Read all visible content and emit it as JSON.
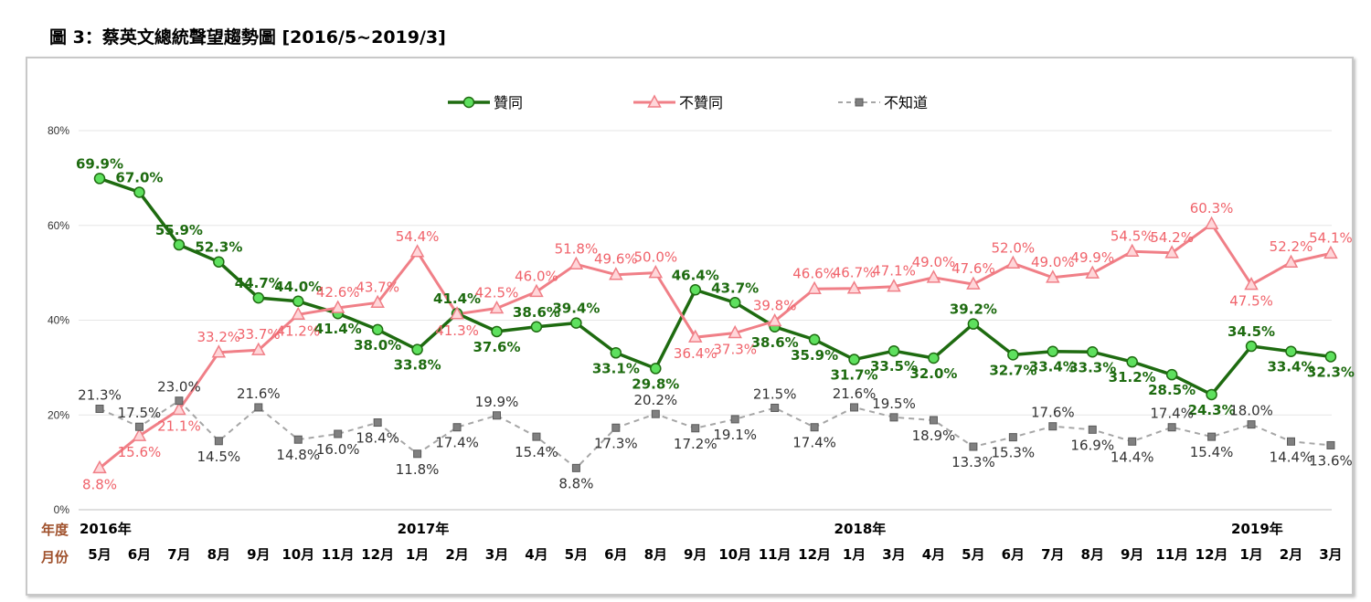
{
  "page": {
    "title": "圖 3：蔡英文總統聲望趨勢圖 [2016/5~2019/3]"
  },
  "axis_headers": {
    "year": "年度",
    "month": "月份"
  },
  "colors": {
    "approve": "#1e6b10",
    "approve_marker": "#5ee05e",
    "disapprove": "#f07f87",
    "disapprove_label": "#f0636b",
    "unknown": "#a6a6a6",
    "unknown_marker": "#808080"
  },
  "chart_data": {
    "type": "line",
    "title": "",
    "ylim": [
      0,
      80
    ],
    "yticks": [
      "0%",
      "20%",
      "40%",
      "60%",
      "80%"
    ],
    "grid": true,
    "legend_position": "top-center",
    "categories": [
      "5月",
      "6月",
      "7月",
      "8月",
      "9月",
      "10月",
      "11月",
      "12月",
      "1月",
      "2月",
      "3月",
      "4月",
      "5月",
      "6月",
      "8月",
      "9月",
      "10月",
      "11月",
      "12月",
      "1月",
      "3月",
      "4月",
      "5月",
      "6月",
      "7月",
      "8月",
      "9月",
      "11月",
      "12月",
      "1月",
      "2月",
      "3月"
    ],
    "years": [
      {
        "label": "2016年",
        "index": 0
      },
      {
        "label": "2017年",
        "index": 8
      },
      {
        "label": "2018年",
        "index": 19
      },
      {
        "label": "2019年",
        "index": 29
      }
    ],
    "series": [
      {
        "name": "贊同",
        "key": "approve",
        "values": [
          69.9,
          67.0,
          55.9,
          52.3,
          44.7,
          44.0,
          41.4,
          38.0,
          33.8,
          41.4,
          37.6,
          38.6,
          39.4,
          33.1,
          29.8,
          46.4,
          43.7,
          38.6,
          35.9,
          31.7,
          33.5,
          32.0,
          39.2,
          32.7,
          33.4,
          33.3,
          31.2,
          28.5,
          24.3,
          34.5,
          33.4,
          32.3
        ],
        "labels": [
          "69.9%",
          "67.0%",
          "55.9%",
          "52.3%",
          "44.7%",
          "44.0%",
          "41.4%",
          "38.0%",
          "33.8%",
          "41.4%",
          "37.6%",
          "38.6%",
          "39.4%",
          "33.1%",
          "29.8%",
          "46.4%",
          "43.7%",
          "38.6%",
          "35.9%",
          "31.7%",
          "33.5%",
          "32.0%",
          "39.2%",
          "32.7%",
          "33.4%",
          "33.3%",
          "31.2%",
          "28.5%",
          "24.3%",
          "34.5%",
          "33.4%",
          "32.3%"
        ]
      },
      {
        "name": "不贊同",
        "key": "disapprove",
        "values": [
          8.8,
          15.6,
          21.1,
          33.2,
          33.7,
          41.2,
          42.6,
          43.7,
          54.4,
          41.3,
          42.5,
          46.0,
          51.8,
          49.6,
          50.0,
          36.4,
          37.3,
          39.8,
          46.6,
          46.7,
          47.1,
          49.0,
          47.6,
          52.0,
          49.0,
          49.9,
          54.5,
          54.2,
          60.3,
          47.5,
          52.2,
          54.1
        ],
        "labels": [
          "8.8%",
          "15.6%",
          "21.1%",
          "33.2%",
          "33.7%",
          "41.2%",
          "42.6%",
          "43.7%",
          "54.4%",
          "41.3%",
          "42.5%",
          "46.0%",
          "51.8%",
          "49.6%",
          "50.0%",
          "36.4%",
          "37.3%",
          "39.8%",
          "46.6%",
          "46.7%",
          "47.1%",
          "49.0%",
          "47.6%",
          "52.0%",
          "49.0%",
          "49.9%",
          "54.5%",
          "54.2%",
          "60.3%",
          "47.5%",
          "52.2%",
          "54.1%"
        ]
      },
      {
        "name": "不知道",
        "key": "unknown",
        "values": [
          21.3,
          17.5,
          23.0,
          14.5,
          21.6,
          14.8,
          16.0,
          18.4,
          11.8,
          17.4,
          19.9,
          15.4,
          8.8,
          17.3,
          20.2,
          17.2,
          19.1,
          21.5,
          17.4,
          21.6,
          19.5,
          18.9,
          13.3,
          15.3,
          17.6,
          16.9,
          14.4,
          17.4,
          15.4,
          18.0,
          14.4,
          13.6
        ],
        "labels": [
          "21.3%",
          "17.5%",
          "23.0%",
          "14.5%",
          "21.6%",
          "14.8%",
          "16.0%",
          "18.4%",
          "11.8%",
          "17.4%",
          "19.9%",
          "15.4%",
          "8.8%",
          "17.3%",
          "20.2%",
          "17.2%",
          "19.1%",
          "21.5%",
          "17.4%",
          "21.6%",
          "19.5%",
          "18.9%",
          "13.3%",
          "15.3%",
          "17.6%",
          "16.9%",
          "14.4%",
          "17.4%",
          "15.4%",
          "18.0%",
          "14.4%",
          "13.6%"
        ]
      }
    ]
  }
}
